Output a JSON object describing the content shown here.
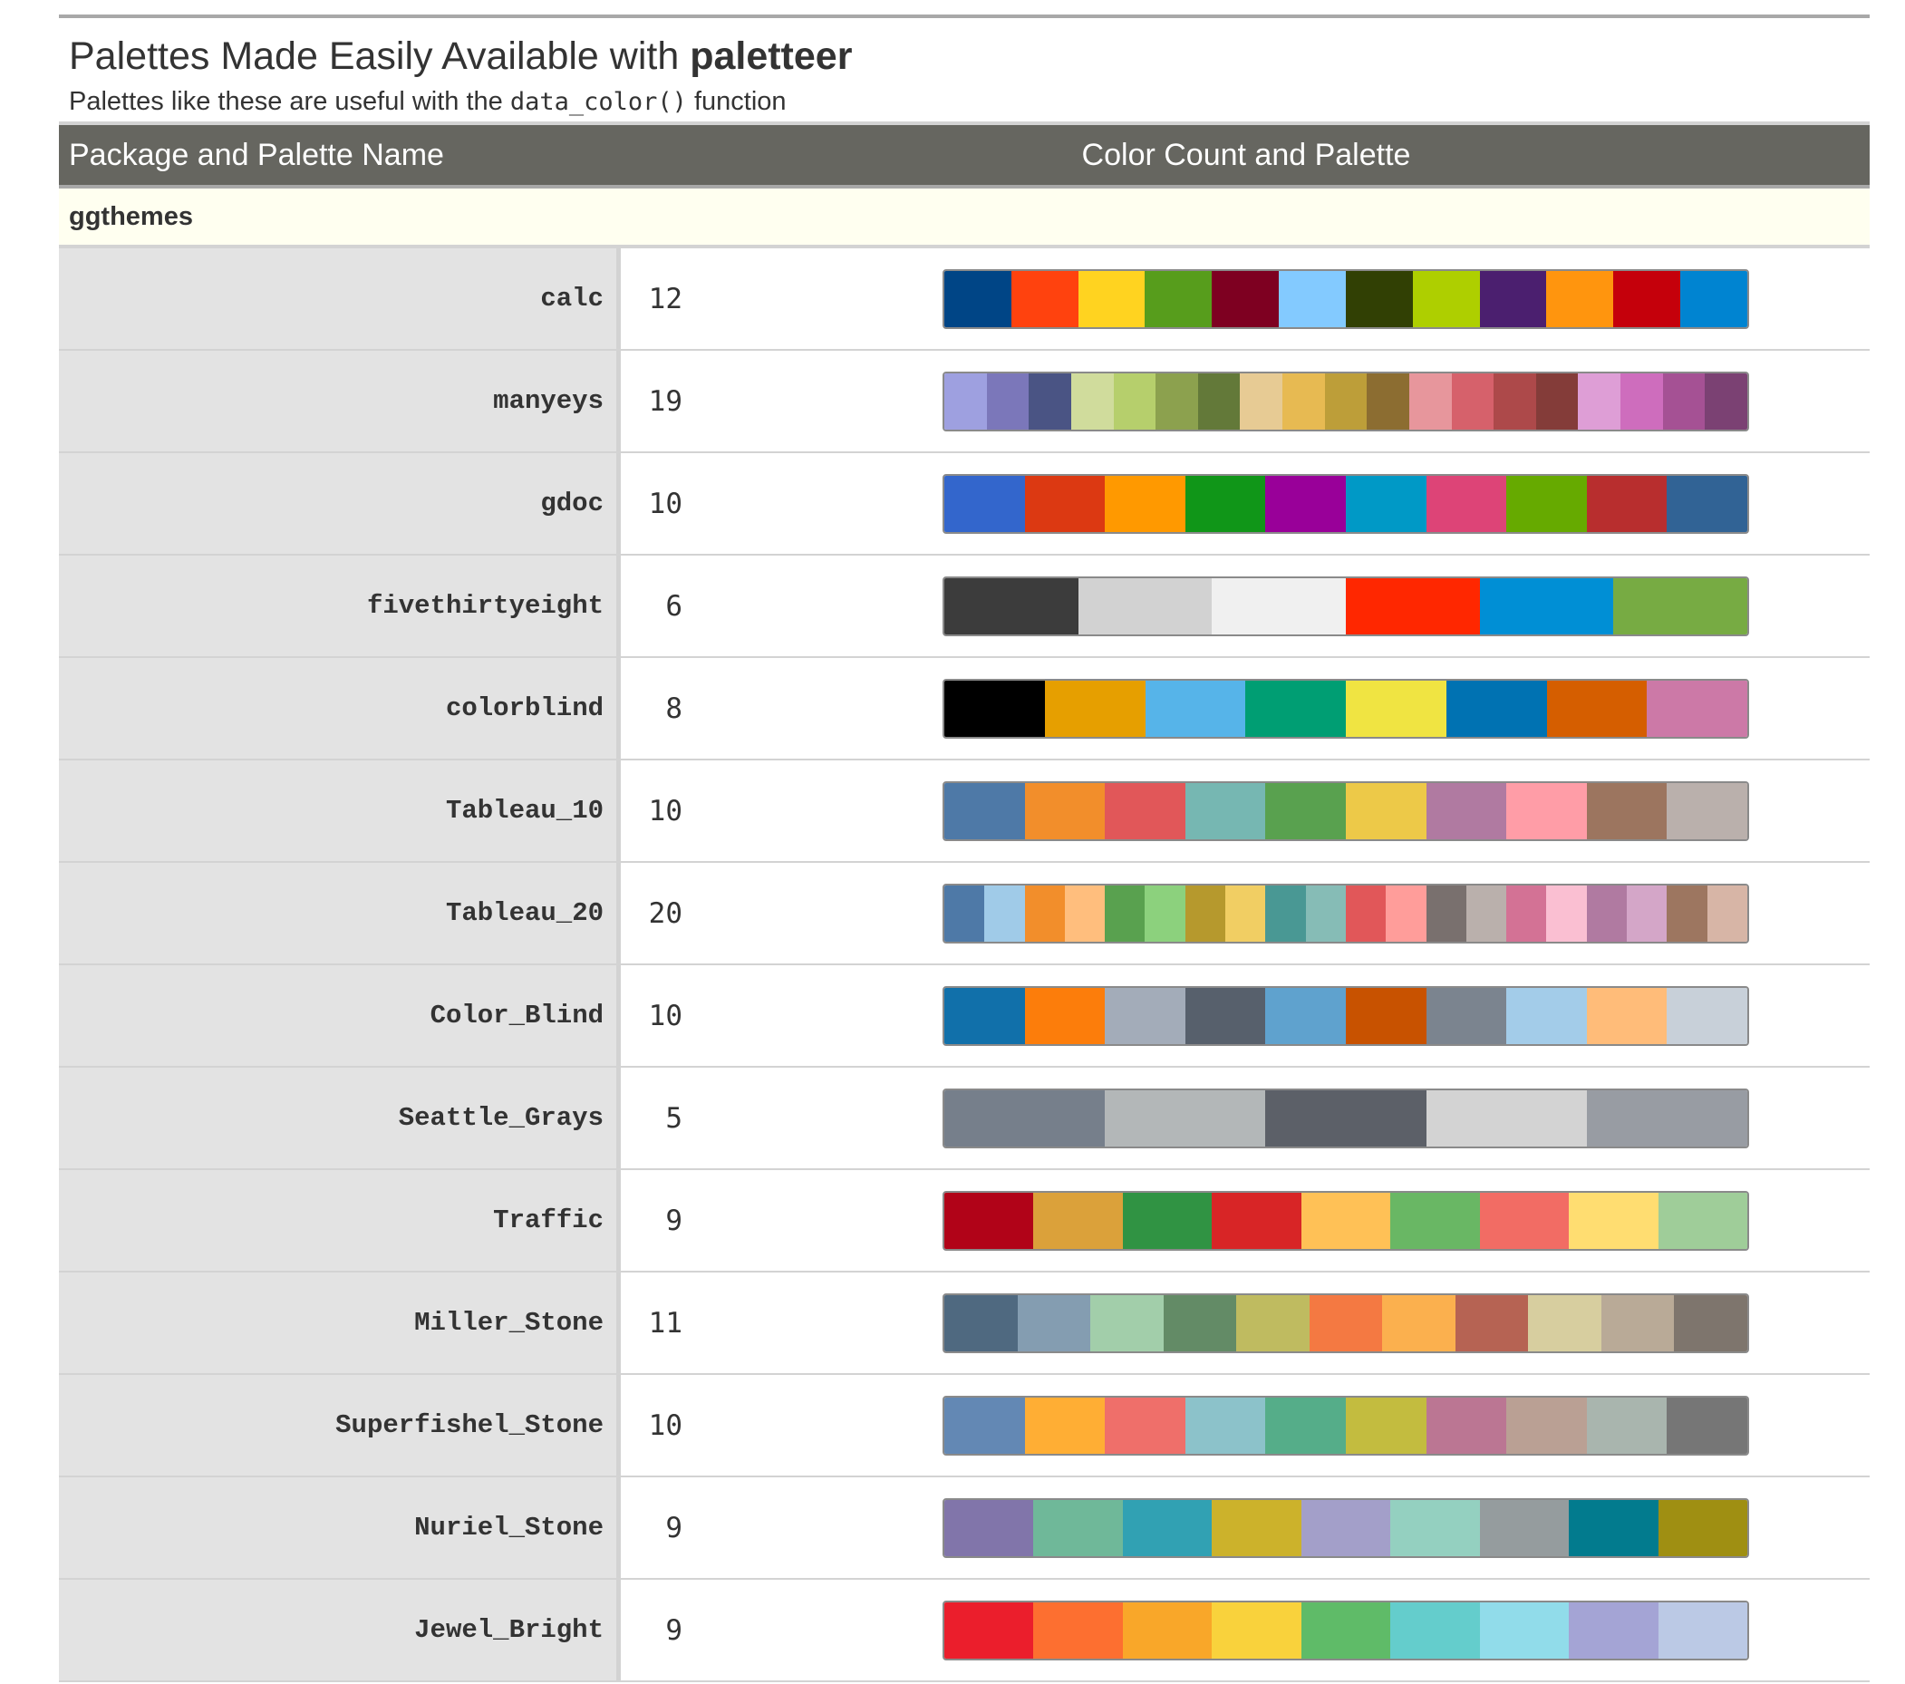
{
  "header": {
    "title_prefix": "Palettes Made Easily Available with ",
    "title_bold": "paletteer",
    "subtitle_prefix": "Palettes like these are useful with the ",
    "subtitle_code": "data_color()",
    "subtitle_suffix": " function"
  },
  "columns": {
    "name": "Package and Palette Name",
    "palette": "Color Count and Palette"
  },
  "group": {
    "label": "ggthemes"
  },
  "rows": [
    {
      "name": "calc",
      "count": "12",
      "colors": [
        "#004586",
        "#FF420E",
        "#FFD320",
        "#579D1C",
        "#7E0021",
        "#83CAFF",
        "#314004",
        "#AECF00",
        "#4B1F6F",
        "#FF950E",
        "#C5000B",
        "#0084D1"
      ]
    },
    {
      "name": "manyeys",
      "count": "19",
      "colors": [
        "#9EA0E0",
        "#7B77BA",
        "#4A5484",
        "#D0DC9C",
        "#B6CF6C",
        "#8CA14E",
        "#637939",
        "#E7CB94",
        "#E7BA52",
        "#BD9E39",
        "#8C6D31",
        "#E7969C",
        "#D6616B",
        "#AD494A",
        "#843C39",
        "#DE9ED6",
        "#CE6DBD",
        "#A55194",
        "#7B4173"
      ]
    },
    {
      "name": "gdoc",
      "count": "10",
      "colors": [
        "#3366CC",
        "#DC3912",
        "#FF9900",
        "#109618",
        "#990099",
        "#0099C6",
        "#DD4477",
        "#66AA00",
        "#B82E2E",
        "#316395"
      ]
    },
    {
      "name": "fivethirtyeight",
      "count": "6",
      "colors": [
        "#3C3C3C",
        "#D2D2D2",
        "#F0F0F0",
        "#FF2700",
        "#008FD5",
        "#77AB43"
      ]
    },
    {
      "name": "colorblind",
      "count": "8",
      "colors": [
        "#000000",
        "#E69F00",
        "#56B4E9",
        "#009E73",
        "#F0E442",
        "#0072B2",
        "#D55E00",
        "#CC79A7"
      ]
    },
    {
      "name": "Tableau_10",
      "count": "10",
      "colors": [
        "#4E79A7",
        "#F28E2B",
        "#E15759",
        "#76B7B2",
        "#59A14F",
        "#EDC948",
        "#B07AA1",
        "#FF9DA7",
        "#9C755F",
        "#BAB0AC"
      ]
    },
    {
      "name": "Tableau_20",
      "count": "20",
      "colors": [
        "#4E79A7",
        "#A0CBE8",
        "#F28E2B",
        "#FFBE7D",
        "#59A14F",
        "#8CD17D",
        "#B6992D",
        "#F1CE63",
        "#499894",
        "#86BCB6",
        "#E15759",
        "#FF9D9A",
        "#79706E",
        "#BAB0AC",
        "#D37295",
        "#FABFD2",
        "#B07AA1",
        "#D4A6C8",
        "#9D7660",
        "#D7B5A6"
      ]
    },
    {
      "name": "Color_Blind",
      "count": "10",
      "colors": [
        "#1170AA",
        "#FC7D0B",
        "#A3ACB9",
        "#57606C",
        "#5FA2CE",
        "#C85200",
        "#7B848F",
        "#A3CCE9",
        "#FFBC79",
        "#C8D0D9"
      ]
    },
    {
      "name": "Seattle_Grays",
      "count": "5",
      "colors": [
        "#767F8B",
        "#B3B7B8",
        "#5C6068",
        "#D3D3D3",
        "#989CA3"
      ]
    },
    {
      "name": "Traffic",
      "count": "9",
      "colors": [
        "#B10318",
        "#DBA13A",
        "#309343",
        "#D82526",
        "#FFC156",
        "#69B764",
        "#F26C64",
        "#FFDD71",
        "#9FCD99"
      ]
    },
    {
      "name": "Miller_Stone",
      "count": "11",
      "colors": [
        "#4F6980",
        "#849DB1",
        "#A2CEAA",
        "#638B66",
        "#BFBB60",
        "#F47942",
        "#FBB04E",
        "#B66353",
        "#D7CE9F",
        "#B9AA97",
        "#7E756D"
      ]
    },
    {
      "name": "Superfishel_Stone",
      "count": "10",
      "colors": [
        "#6388B4",
        "#FFAE34",
        "#EF6F6A",
        "#8CC2CA",
        "#55AD89",
        "#C3BC3F",
        "#BB7693",
        "#BAA094",
        "#A9B5AE",
        "#767676"
      ]
    },
    {
      "name": "Nuriel_Stone",
      "count": "9",
      "colors": [
        "#8175AA",
        "#6FB899",
        "#31A1B3",
        "#CCB22B",
        "#A39FC9",
        "#94D0C0",
        "#959C9E",
        "#027B8E",
        "#9F8F12"
      ]
    },
    {
      "name": "Jewel_Bright",
      "count": "9",
      "colors": [
        "#EB1E2C",
        "#FD6F30",
        "#F9A729",
        "#F9D23C",
        "#5FBB68",
        "#64CDCC",
        "#91DCEA",
        "#A4A4D5",
        "#BBC9E5"
      ]
    }
  ]
}
